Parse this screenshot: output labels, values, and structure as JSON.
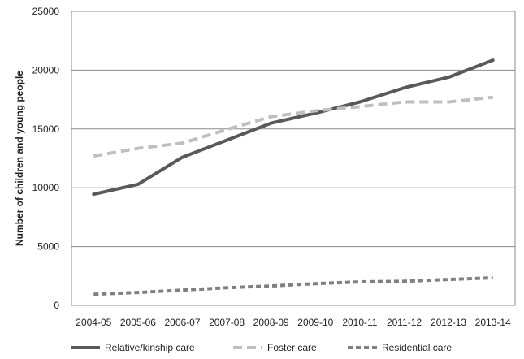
{
  "chart_data": {
    "type": "line",
    "title": "",
    "xlabel": "",
    "ylabel": "Number of children and young people",
    "categories": [
      "2004-05",
      "2005-06",
      "2006-07",
      "2007-08",
      "2008-09",
      "2009-10",
      "2010-11",
      "2011-12",
      "2012-13",
      "2013-14"
    ],
    "ylim": [
      0,
      25000
    ],
    "yticks": [
      "0",
      "5000",
      "10000",
      "15000",
      "20000",
      "25000"
    ],
    "grid": true,
    "legend_position": "bottom",
    "series": [
      {
        "name": "Relative/kinship care",
        "values": [
          9450,
          10300,
          12600,
          14050,
          15500,
          16350,
          17300,
          18500,
          19400,
          20850
        ],
        "color": "#595959",
        "style": "solid"
      },
      {
        "name": "Foster care",
        "values": [
          12700,
          13350,
          13800,
          14950,
          16050,
          16550,
          16900,
          17300,
          17300,
          17700
        ],
        "color": "#bfbfbf",
        "style": "dashed"
      },
      {
        "name": "Residential care",
        "values": [
          950,
          1100,
          1300,
          1500,
          1650,
          1850,
          2000,
          2050,
          2200,
          2350
        ],
        "color": "#808080",
        "style": "dotted"
      }
    ]
  }
}
